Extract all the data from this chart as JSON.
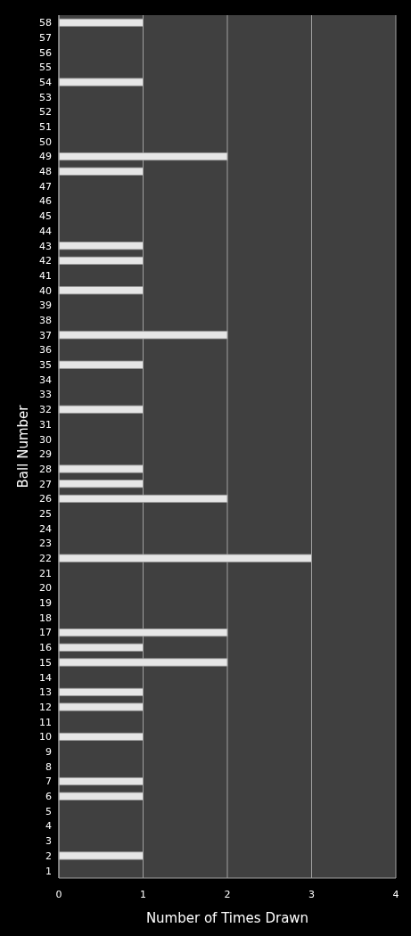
{
  "chart_data": {
    "type": "bar",
    "orientation": "horizontal",
    "xlabel": "Number of Times Drawn",
    "ylabel": "Ball Number",
    "categories": [
      "58",
      "57",
      "56",
      "55",
      "54",
      "53",
      "52",
      "51",
      "50",
      "49",
      "48",
      "47",
      "46",
      "45",
      "44",
      "43",
      "42",
      "41",
      "40",
      "39",
      "38",
      "37",
      "36",
      "35",
      "34",
      "33",
      "32",
      "31",
      "30",
      "29",
      "28",
      "27",
      "26",
      "25",
      "24",
      "23",
      "22",
      "21",
      "20",
      "19",
      "18",
      "17",
      "16",
      "15",
      "14",
      "13",
      "12",
      "11",
      "10",
      "9",
      "8",
      "7",
      "6",
      "5",
      "4",
      "3",
      "2",
      "1"
    ],
    "values": [
      1,
      0,
      0,
      0,
      1,
      0,
      0,
      0,
      0,
      2,
      1,
      0,
      0,
      0,
      0,
      1,
      1,
      0,
      1,
      0,
      0,
      2,
      0,
      1,
      0,
      0,
      1,
      0,
      0,
      0,
      1,
      1,
      2,
      0,
      0,
      0,
      3,
      0,
      0,
      0,
      0,
      2,
      1,
      2,
      0,
      1,
      1,
      0,
      1,
      0,
      0,
      1,
      1,
      0,
      0,
      0,
      1,
      0
    ],
    "color": "#e6e6e6",
    "xlim": [
      0,
      4
    ],
    "xticks": [
      0,
      1,
      2,
      3,
      4
    ],
    "grid": "x"
  }
}
